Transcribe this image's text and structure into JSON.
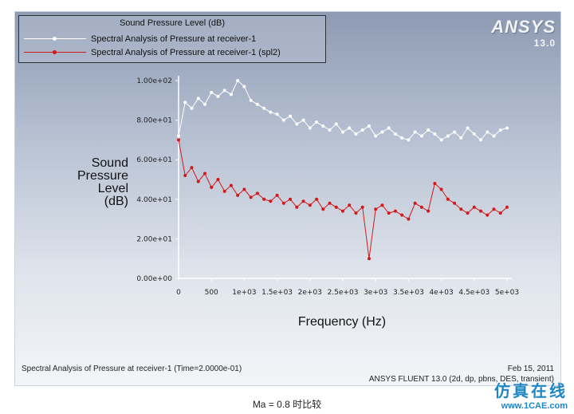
{
  "legend": {
    "title": "Sound Pressure Level (dB)",
    "entries": [
      "Spectral Analysis of Pressure at receiver-1",
      "Spectral Analysis of Pressure at receiver-1 (spl2)"
    ]
  },
  "logo": {
    "name": "ANSYS",
    "version": "13.0"
  },
  "footer": {
    "left": "Spectral Analysis of Pressure at receiver-1  (Time=2.0000e-01)",
    "date": "Feb 15, 2011",
    "product": "ANSYS FLUENT 13.0 (2d, dp, pbns, DES, transient)"
  },
  "caption": "Ma = 0.8 时比较",
  "watermark": {
    "cn": "仿真在线",
    "url": "www.1CAE.com"
  },
  "colors": {
    "series1": "#ffffff",
    "series2": "#d41818"
  },
  "chart_data": {
    "type": "line",
    "title": "Sound Pressure Level (dB)",
    "xlabel": "Frequency (Hz)",
    "ylabel": "Sound Pressure Level (dB)",
    "ylabel_lines": [
      "Sound",
      "Pressure",
      "Level",
      "(dB)"
    ],
    "xlim": [
      0,
      5000
    ],
    "ylim": [
      0,
      100
    ],
    "xticks": [
      0,
      500,
      1000,
      1500,
      2000,
      2500,
      3000,
      3500,
      4000,
      4500,
      5000
    ],
    "xtick_labels": [
      "0",
      "500",
      "1e+03",
      "1.5e+03",
      "2e+03",
      "2.5e+03",
      "3e+03",
      "3.5e+03",
      "4e+03",
      "4.5e+03",
      "5e+03"
    ],
    "yticks": [
      0,
      20,
      40,
      60,
      80,
      100
    ],
    "ytick_labels": [
      "0.00e+00",
      "2.00e+01",
      "4.00e+01",
      "6.00e+01",
      "8.00e+01",
      "1.00e+02"
    ],
    "grid": false,
    "legend_position": "top-left",
    "x": [
      0,
      100,
      200,
      300,
      400,
      500,
      600,
      700,
      800,
      900,
      1000,
      1100,
      1200,
      1300,
      1400,
      1500,
      1600,
      1700,
      1800,
      1900,
      2000,
      2100,
      2200,
      2300,
      2400,
      2500,
      2600,
      2700,
      2800,
      2900,
      3000,
      3100,
      3200,
      3300,
      3400,
      3500,
      3600,
      3700,
      3800,
      3900,
      4000,
      4100,
      4200,
      4300,
      4400,
      4500,
      4600,
      4700,
      4800,
      4900,
      5000
    ],
    "series": [
      {
        "name": "Spectral Analysis of Pressure at receiver-1",
        "values": [
          72,
          89,
          86,
          91,
          88,
          94,
          92,
          95,
          93,
          100,
          97,
          90,
          88,
          86,
          84,
          83,
          80,
          82,
          78,
          80,
          76,
          79,
          77,
          75,
          78,
          74,
          76,
          73,
          75,
          77,
          72,
          74,
          76,
          73,
          71,
          70,
          74,
          72,
          75,
          73,
          70,
          72,
          74,
          71,
          76,
          73,
          70,
          74,
          72,
          75,
          76
        ]
      },
      {
        "name": "Spectral Analysis of Pressure at receiver-1 (spl2)",
        "values": [
          70,
          52,
          56,
          49,
          53,
          46,
          50,
          44,
          47,
          42,
          45,
          41,
          43,
          40,
          39,
          42,
          38,
          40,
          36,
          39,
          37,
          40,
          35,
          38,
          36,
          34,
          37,
          33,
          36,
          10,
          35,
          37,
          33,
          34,
          32,
          30,
          38,
          36,
          34,
          48,
          45,
          40,
          38,
          35,
          33,
          36,
          34,
          32,
          35,
          33,
          36
        ]
      }
    ]
  }
}
